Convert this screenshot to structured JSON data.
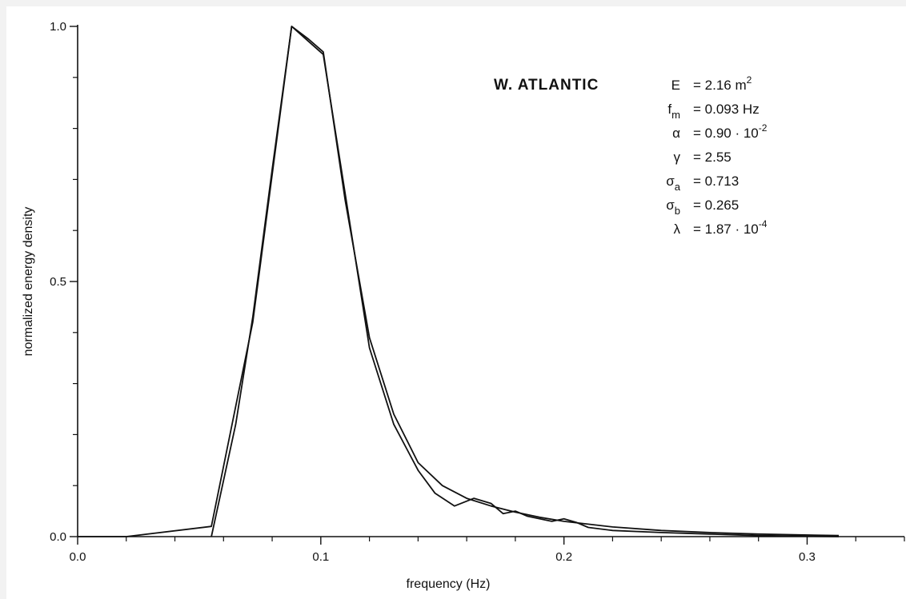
{
  "chart_data": {
    "type": "line",
    "title": "",
    "xlabel": "frequency (Hz)",
    "ylabel": "normalized energy density",
    "xlim": [
      0.0,
      0.34
    ],
    "ylim": [
      0.0,
      1.0
    ],
    "x_ticks": [
      "0.0",
      "0.1",
      "0.2",
      "0.3"
    ],
    "y_ticks": [
      "0.0",
      "0.5",
      "1.0"
    ],
    "grid": false,
    "legend": "none",
    "series": [
      {
        "x": [
          0.0,
          0.02,
          0.055,
          0.072,
          0.088,
          0.101,
          0.12,
          0.13,
          0.14,
          0.147,
          0.155,
          0.163,
          0.17,
          0.175,
          0.18,
          0.185,
          0.195,
          0.2,
          0.205,
          0.21,
          0.22,
          0.24,
          0.26,
          0.28,
          0.313
        ],
        "y": [
          0.0,
          0.0,
          0.02,
          0.42,
          1.0,
          0.945,
          0.37,
          0.22,
          0.13,
          0.085,
          0.06,
          0.075,
          0.065,
          0.045,
          0.05,
          0.04,
          0.03,
          0.035,
          0.028,
          0.018,
          0.012,
          0.008,
          0.005,
          0.002,
          0.0
        ]
      },
      {
        "x": [
          0.055,
          0.065,
          0.072,
          0.08,
          0.088,
          0.095,
          0.101,
          0.11,
          0.12,
          0.13,
          0.14,
          0.15,
          0.16,
          0.17,
          0.18,
          0.19,
          0.2,
          0.22,
          0.24,
          0.26,
          0.28,
          0.313
        ],
        "y": [
          0.0,
          0.22,
          0.43,
          0.72,
          1.0,
          0.975,
          0.95,
          0.66,
          0.39,
          0.24,
          0.145,
          0.1,
          0.075,
          0.06,
          0.048,
          0.038,
          0.03,
          0.019,
          0.012,
          0.008,
          0.005,
          0.002
        ]
      }
    ]
  },
  "annotation": {
    "site": "W. ATLANTIC",
    "params": [
      {
        "sym": "E",
        "sub": "",
        "value": "2.16 m",
        "sup": "2"
      },
      {
        "sym": "f",
        "sub": "m",
        "value": "0.093 Hz",
        "sup": ""
      },
      {
        "sym": "α",
        "sub": "",
        "value": "0.90 · 10",
        "sup": "-2"
      },
      {
        "sym": "γ",
        "sub": "",
        "value": "2.55",
        "sup": ""
      },
      {
        "sym": "σ",
        "sub": "a",
        "value": "0.713",
        "sup": ""
      },
      {
        "sym": "σ",
        "sub": "b",
        "value": "0.265",
        "sup": ""
      },
      {
        "sym": "λ",
        "sub": "",
        "value": "1.87 · 10",
        "sup": "-4"
      }
    ]
  }
}
